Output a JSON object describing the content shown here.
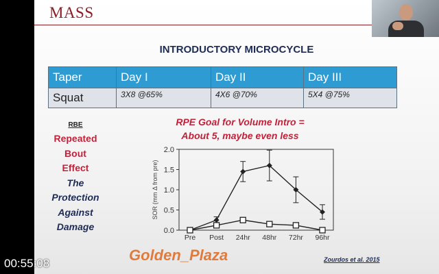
{
  "slide": {
    "logo": "MASS",
    "title": "INTRODUCTORY MICROCYCLE",
    "table": {
      "headers": [
        "Taper",
        "Day I",
        "Day II",
        "Day III"
      ],
      "row": [
        "Squat",
        "3X8 @65%",
        "4X6 @70%",
        "5X4 @75%"
      ]
    },
    "rbe": {
      "abbr": "RBE",
      "line1": "Repeated",
      "line2": "Bout",
      "line3": "Effect",
      "line4": "The",
      "line5": "Protection",
      "line6": "Against",
      "line7": "Damage"
    },
    "rpe_line1": "RPE Goal for Volume Intro =",
    "rpe_line2": "About 5, maybe even less",
    "citation": "Zourdos et al. 2015"
  },
  "overlay_text": "Golden_Plaza",
  "timer": "00:55:08",
  "colors": {
    "brand": "#8b1d24",
    "table_header": "#2e9bd2",
    "accent_red": "#c0223a",
    "navy": "#1d2b55"
  },
  "chart_data": {
    "type": "line",
    "ylabel": "SOR (mm Δ from pre)",
    "categories": [
      "Pre",
      "Post",
      "24hr",
      "48hr",
      "72hr",
      "96hr"
    ],
    "ylim": [
      0,
      2.0
    ],
    "yticks": [
      "0.0",
      "0.5",
      "1.0",
      "1.5",
      "2.0"
    ],
    "series": [
      {
        "marker": "diamond-filled",
        "values": [
          0.0,
          0.25,
          1.45,
          1.6,
          1.0,
          0.45
        ],
        "errors": [
          0.0,
          0.08,
          0.25,
          0.38,
          0.32,
          0.18
        ]
      },
      {
        "marker": "square-open",
        "values": [
          0.0,
          0.12,
          0.25,
          0.15,
          0.12,
          0.0
        ],
        "errors": [
          0.0,
          0.0,
          0.0,
          0.0,
          0.0,
          0.0
        ]
      }
    ]
  }
}
